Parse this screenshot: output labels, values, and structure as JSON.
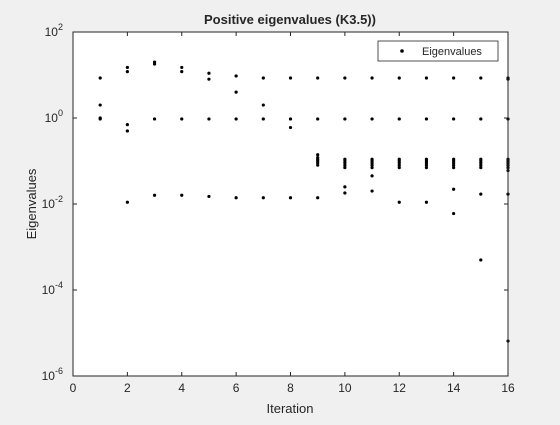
{
  "chart_data": {
    "type": "scatter",
    "title": "Positive eigenvalues (K3.5))",
    "xlabel": "Iteration",
    "ylabel": "Eigenvalues",
    "xlim": [
      0,
      16
    ],
    "ylim": [
      1e-06,
      100
    ],
    "y_scale": "log",
    "grid": false,
    "legend_position": "top-right",
    "legend": [
      "Eigenvalues"
    ],
    "x_ticks": [
      0,
      2,
      4,
      6,
      8,
      10,
      12,
      14,
      16
    ],
    "y_ticks": [
      {
        "value": 1e-06,
        "base": "10",
        "exp": "-6"
      },
      {
        "value": 0.0001,
        "base": "10",
        "exp": "-4"
      },
      {
        "value": 0.01,
        "base": "10",
        "exp": "-2"
      },
      {
        "value": 1,
        "base": "10",
        "exp": "0"
      },
      {
        "value": 100,
        "base": "10",
        "exp": "2"
      }
    ],
    "marker_color": "#000000",
    "series": [
      {
        "name": "Eigenvalues",
        "points": [
          [
            1,
            8.5
          ],
          [
            1,
            2.0
          ],
          [
            1,
            1.0
          ],
          [
            1,
            0.95
          ],
          [
            2,
            15
          ],
          [
            2,
            12
          ],
          [
            2,
            0.7
          ],
          [
            2,
            0.5
          ],
          [
            2,
            0.011
          ],
          [
            3,
            20
          ],
          [
            3,
            18
          ],
          [
            3,
            0.95
          ],
          [
            3,
            0.016
          ],
          [
            4,
            15
          ],
          [
            4,
            12
          ],
          [
            4,
            0.95
          ],
          [
            4,
            0.016
          ],
          [
            5,
            11
          ],
          [
            5,
            8
          ],
          [
            5,
            0.95
          ],
          [
            5,
            0.015
          ],
          [
            6,
            9.5
          ],
          [
            6,
            4.0
          ],
          [
            6,
            0.95
          ],
          [
            6,
            0.014
          ],
          [
            7,
            8.5
          ],
          [
            7,
            2.0
          ],
          [
            7,
            0.95
          ],
          [
            7,
            0.014
          ],
          [
            8,
            8.5
          ],
          [
            8,
            0.95
          ],
          [
            8,
            0.6
          ],
          [
            8,
            0.014
          ],
          [
            9,
            8.5
          ],
          [
            9,
            0.95
          ],
          [
            9,
            0.14
          ],
          [
            9,
            0.12
          ],
          [
            9,
            0.11
          ],
          [
            9,
            0.1
          ],
          [
            9,
            0.09
          ],
          [
            9,
            0.08
          ],
          [
            9,
            0.014
          ],
          [
            10,
            8.5
          ],
          [
            10,
            0.95
          ],
          [
            10,
            0.11
          ],
          [
            10,
            0.1
          ],
          [
            10,
            0.09
          ],
          [
            10,
            0.08
          ],
          [
            10,
            0.07
          ],
          [
            10,
            0.025
          ],
          [
            10,
            0.018
          ],
          [
            11,
            8.5
          ],
          [
            11,
            0.95
          ],
          [
            11,
            0.11
          ],
          [
            11,
            0.1
          ],
          [
            11,
            0.09
          ],
          [
            11,
            0.08
          ],
          [
            11,
            0.07
          ],
          [
            11,
            0.045
          ],
          [
            11,
            0.02
          ],
          [
            12,
            8.5
          ],
          [
            12,
            0.95
          ],
          [
            12,
            0.11
          ],
          [
            12,
            0.1
          ],
          [
            12,
            0.09
          ],
          [
            12,
            0.08
          ],
          [
            12,
            0.07
          ],
          [
            12,
            0.011
          ],
          [
            13,
            8.5
          ],
          [
            13,
            0.95
          ],
          [
            13,
            0.11
          ],
          [
            13,
            0.1
          ],
          [
            13,
            0.09
          ],
          [
            13,
            0.08
          ],
          [
            13,
            0.07
          ],
          [
            13,
            0.011
          ],
          [
            14,
            8.5
          ],
          [
            14,
            0.95
          ],
          [
            14,
            0.11
          ],
          [
            14,
            0.1
          ],
          [
            14,
            0.09
          ],
          [
            14,
            0.08
          ],
          [
            14,
            0.07
          ],
          [
            14,
            0.022
          ],
          [
            14,
            0.006
          ],
          [
            15,
            8.5
          ],
          [
            15,
            0.95
          ],
          [
            15,
            0.11
          ],
          [
            15,
            0.1
          ],
          [
            15,
            0.09
          ],
          [
            15,
            0.08
          ],
          [
            15,
            0.07
          ],
          [
            15,
            0.017
          ],
          [
            15,
            0.0005
          ],
          [
            16,
            8.5
          ],
          [
            16,
            8.0
          ],
          [
            16,
            0.95
          ],
          [
            16,
            0.11
          ],
          [
            16,
            0.1
          ],
          [
            16,
            0.09
          ],
          [
            16,
            0.08
          ],
          [
            16,
            0.07
          ],
          [
            16,
            0.06
          ],
          [
            16,
            0.017
          ],
          [
            16,
            6.5e-06
          ]
        ]
      }
    ]
  }
}
